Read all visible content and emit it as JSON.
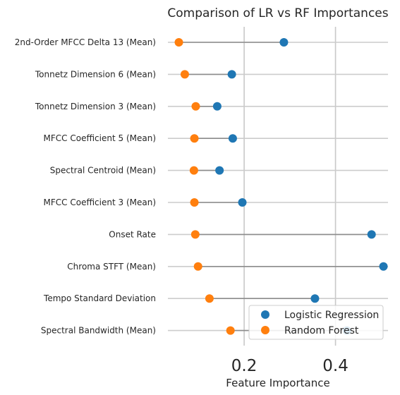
{
  "chart_data": {
    "type": "dumbbell",
    "title": "Comparison of LR vs RF Importances",
    "xlabel": "Feature Importance",
    "ylabel": "",
    "xlim": [
      0.033,
      0.515
    ],
    "xticks": [
      0.2,
      0.4
    ],
    "xtick_labels": [
      "0.2",
      "0.4"
    ],
    "grid": true,
    "legend_position": "lower-right",
    "categories": [
      "2nd-Order MFCC Delta 13 (Mean)",
      "Tonnetz Dimension 6 (Mean)",
      "Tonnetz Dimension 3 (Mean)",
      "MFCC Coefficient 5 (Mean)",
      "Spectral Centroid (Mean)",
      "MFCC Coefficient 3 (Mean)",
      "Onset Rate",
      "Chroma STFT (Mean)",
      "Tempo Standard Deviation",
      "Spectral Bandwidth (Mean)"
    ],
    "series": [
      {
        "name": "Logistic Regression",
        "color": "#1f77b4",
        "values": [
          0.287,
          0.173,
          0.141,
          0.175,
          0.146,
          0.196,
          0.479,
          0.505,
          0.355,
          0.425
        ]
      },
      {
        "name": "Random Forest",
        "color": "#ff7f0e",
        "values": [
          0.057,
          0.07,
          0.094,
          0.091,
          0.09,
          0.091,
          0.093,
          0.099,
          0.124,
          0.17
        ]
      }
    ]
  }
}
